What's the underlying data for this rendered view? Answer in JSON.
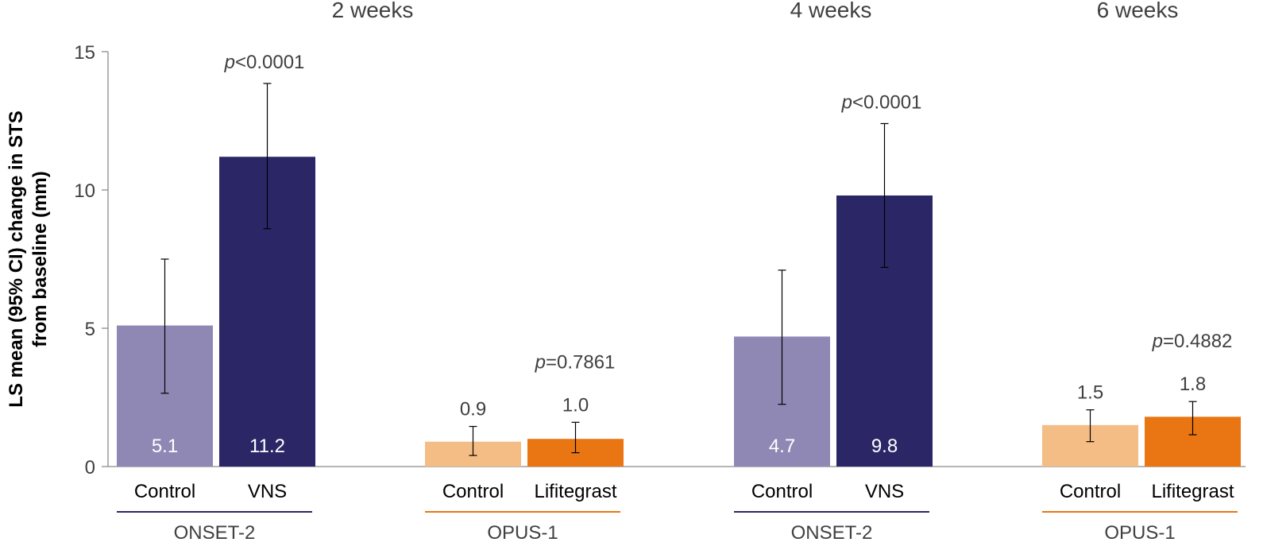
{
  "chart_data": {
    "type": "bar",
    "ylabel_lines": [
      "LS mean (95% CI) change in STS",
      "from baseline (mm)"
    ],
    "ylim": [
      0,
      15
    ],
    "yticks": [
      0,
      5,
      10,
      15
    ],
    "ytick_labels": [
      "0",
      "5",
      "10",
      "15"
    ],
    "timepoints": [
      "2 weeks",
      "4 weeks",
      "6 weeks"
    ],
    "colors": {
      "onset_control": "#9088b4",
      "onset_vns": "#2b2767",
      "opus_control": "#f4bd86",
      "opus_lifitegrast": "#e97613",
      "onset_line": "#2b2767",
      "opus_line": "#e97613",
      "label_text": "#404040",
      "inner_label_text": "#ffffff"
    },
    "groups": [
      {
        "study": "ONSET-2",
        "p_prefix": "p",
        "p_value": "<0.0001",
        "bars": [
          {
            "label": "Control",
            "value": 5.1,
            "value_label": "5.1",
            "ci_low": 2.65,
            "ci_high": 7.5,
            "color_key": "onset_control",
            "label_inside": true
          },
          {
            "label": "VNS",
            "value": 11.2,
            "value_label": "11.2",
            "ci_low": 8.6,
            "ci_high": 13.85,
            "color_key": "onset_vns",
            "label_inside": true
          }
        ]
      },
      {
        "study": "OPUS-1",
        "p_prefix": "p",
        "p_value": "=0.7861",
        "bars": [
          {
            "label": "Control",
            "value": 0.9,
            "value_label": "0.9",
            "ci_low": 0.4,
            "ci_high": 1.45,
            "color_key": "opus_control",
            "label_inside": false
          },
          {
            "label": "Lifitegrast",
            "value": 1.0,
            "value_label": "1.0",
            "ci_low": 0.5,
            "ci_high": 1.6,
            "color_key": "opus_lifitegrast",
            "label_inside": false
          }
        ]
      },
      {
        "study": "ONSET-2",
        "p_prefix": "p",
        "p_value": "<0.0001",
        "bars": [
          {
            "label": "Control",
            "value": 4.7,
            "value_label": "4.7",
            "ci_low": 2.25,
            "ci_high": 7.1,
            "color_key": "onset_control",
            "label_inside": true
          },
          {
            "label": "VNS",
            "value": 9.8,
            "value_label": "9.8",
            "ci_low": 7.2,
            "ci_high": 12.4,
            "color_key": "onset_vns",
            "label_inside": true
          }
        ]
      },
      {
        "study": "OPUS-1",
        "p_prefix": "p",
        "p_value": "=0.4882",
        "bars": [
          {
            "label": "Control",
            "value": 1.5,
            "value_label": "1.5",
            "ci_low": 0.9,
            "ci_high": 2.05,
            "color_key": "opus_control",
            "label_inside": false
          },
          {
            "label": "Lifitegrast",
            "value": 1.8,
            "value_label": "1.8",
            "ci_low": 1.15,
            "ci_high": 2.35,
            "color_key": "opus_lifitegrast",
            "label_inside": false
          }
        ]
      }
    ]
  }
}
